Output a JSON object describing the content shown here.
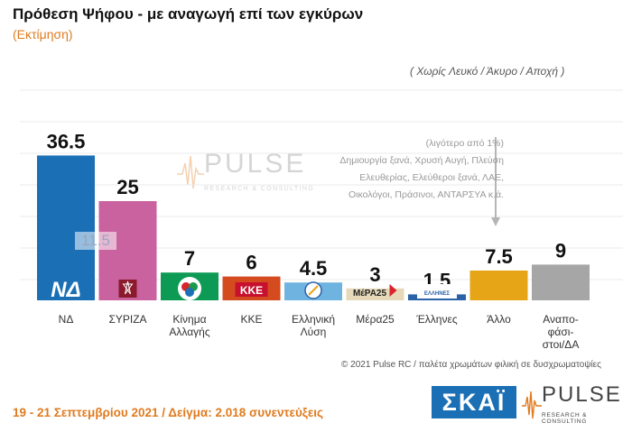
{
  "header": {
    "title": "Πρόθεση Ψήφου - με αναγωγή επί των εγκύρων",
    "subtitle": "(Εκτίμηση)",
    "note": "( Χωρίς Λευκό / Άκυρο / Αποχή )"
  },
  "watermark": {
    "text": "PULSE",
    "subtext": "RESEARCH & CONSULTING"
  },
  "other_note": {
    "lines": [
      "(λιγότερο από 1%)",
      "Δημιουργία ξανά, Χρυσή Αυγή, Πλεύση",
      "Ελευθερίας, Ελεύθεροι ξανά, ΛΑΕ,",
      "Οικολόγοι, Πράσινοι, ΑΝΤΑΡΣΥΑ  κ.ά."
    ]
  },
  "chart_data": {
    "type": "bar",
    "categories": [
      "ΝΔ",
      "ΣΥΡΙΖΑ",
      "Κίνημα Αλλαγής",
      "ΚΚΕ",
      "Ελληνική Λύση",
      "Μέρα25",
      "Έλληνες",
      "Άλλο",
      "Αναπο-φάσι-στοι/ΔΑ"
    ],
    "category_lines": [
      [
        "ΝΔ"
      ],
      [
        "ΣΥΡΙΖΑ"
      ],
      [
        "Κίνημα",
        "Αλλαγής"
      ],
      [
        "ΚΚΕ"
      ],
      [
        "Ελληνική",
        "Λύση"
      ],
      [
        "Μέρα25"
      ],
      [
        "Έλληνες"
      ],
      [
        "Άλλο"
      ],
      [
        "Αναπο-",
        "φάσι-",
        "στοι/ΔΑ"
      ]
    ],
    "values": [
      36.5,
      25,
      7,
      6,
      4.5,
      3,
      1.5,
      7.5,
      9
    ],
    "value_labels": [
      "36.5",
      "25",
      "7",
      "6",
      "4.5",
      "3",
      "1.5",
      "7.5",
      "9"
    ],
    "colors": [
      "#1a6fb5",
      "#c9629e",
      "#0d9a55",
      "#d44b1f",
      "#6fb4e0",
      "#e6d8b8",
      "#2a62a8",
      "#e6a516",
      "#a6a6a6"
    ],
    "difference_annotation": {
      "label": "11.5",
      "between": [
        "ΝΔ",
        "ΣΥΡΙΖΑ"
      ]
    },
    "logo_labels": [
      "ΝΔ",
      "",
      "",
      "ΚΚΕ",
      "",
      "ΜέΡΑ25",
      "ΕΛΛΗΝΕΣ",
      "",
      ""
    ],
    "ylim": [
      0,
      40
    ],
    "grid": true,
    "xlabel": "",
    "ylabel": ""
  },
  "footer": {
    "credit": "© 2021 Pulse RC  /  παλέτα χρωμάτων φιλική σε δυσχρωματοψίες",
    "date_sample": "19 - 21 Σεπτεμβρίου 2021  /  Δείγμα:  2.018 συνεντεύξεις"
  },
  "logos": {
    "broadcaster": "ΣΚΑΪ",
    "pollster": "PULSE",
    "pollster_sub": "RESEARCH & CONSULTING"
  }
}
